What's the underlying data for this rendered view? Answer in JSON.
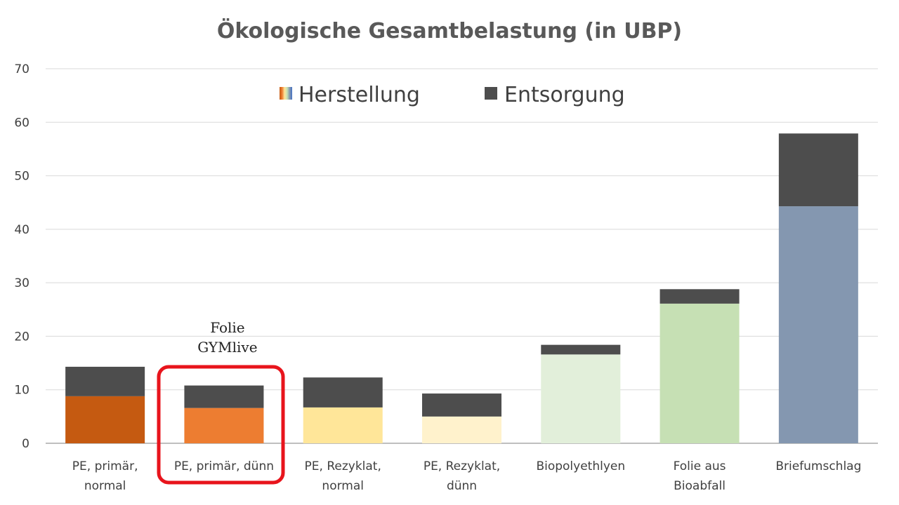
{
  "chart_data": {
    "type": "bar",
    "stacked": true,
    "title": "Ökologische Gesamtbelastung (in UBP)",
    "xlabel": "",
    "ylabel": "",
    "ylim": [
      0,
      70
    ],
    "yticks": [
      "0",
      "10",
      "20",
      "30",
      "40",
      "50",
      "60",
      "70"
    ],
    "grid": true,
    "legend_position": "top-center",
    "categories": [
      [
        "PE, primär,",
        "normal"
      ],
      [
        "PE, primär, dünn"
      ],
      [
        "PE, Rezyklat,",
        "normal"
      ],
      [
        "PE, Rezyklat,",
        "dünn"
      ],
      [
        "Biopolyethlyen"
      ],
      [
        "Folie aus",
        "Bioabfall"
      ],
      [
        "Briefumschlag"
      ]
    ],
    "series": [
      {
        "name": "Herstellung",
        "values": [
          8.8,
          6.6,
          6.7,
          5.0,
          16.6,
          26.1,
          44.3
        ],
        "colors": [
          "#c55a11",
          "#ed7d31",
          "#ffe699",
          "#fff2cc",
          "#e2efda",
          "#c6e0b4",
          "#8497b0"
        ]
      },
      {
        "name": "Entsorgung",
        "values": [
          5.5,
          4.2,
          5.6,
          4.3,
          1.8,
          2.7,
          13.6
        ],
        "colors": [
          "#4d4d4d",
          "#4d4d4d",
          "#4d4d4d",
          "#4d4d4d",
          "#4d4d4d",
          "#4d4d4d",
          "#4d4d4d"
        ]
      }
    ],
    "annotation": {
      "lines": [
        "Folie",
        "GYMlive"
      ],
      "category_index": 1,
      "highlight_color": "#e8141c"
    }
  }
}
